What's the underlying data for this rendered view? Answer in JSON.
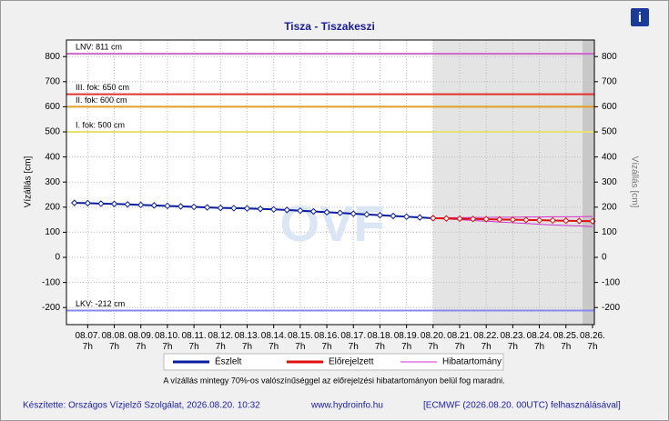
{
  "chart_data": {
    "type": "line",
    "title": "Tisza - Tiszakeszi",
    "ylabel": "Vízállás [cm]",
    "watermark": "OVF",
    "xlim": [
      -0.8,
      19.07
    ],
    "ylim": [
      -268,
      866
    ],
    "grid": true,
    "legend": "bottom",
    "yticks": [
      -200,
      -100,
      0,
      100,
      200,
      300,
      400,
      500,
      600,
      700,
      800
    ],
    "xticks": [
      {
        "value": 0,
        "label": "08.07.\n7h"
      },
      {
        "value": 1,
        "label": "08.08.\n7h"
      },
      {
        "value": 2,
        "label": "08.09.\n7h"
      },
      {
        "value": 3,
        "label": "08.10.\n7h"
      },
      {
        "value": 4,
        "label": "08.11.\n7h"
      },
      {
        "value": 5,
        "label": "08.12.\n7h"
      },
      {
        "value": 6,
        "label": "08.13.\n7h"
      },
      {
        "value": 7,
        "label": "08.14.\n7h"
      },
      {
        "value": 8,
        "label": "08.15.\n7h"
      },
      {
        "value": 9,
        "label": "08.16.\n7h"
      },
      {
        "value": 10,
        "label": "08.17.\n7h"
      },
      {
        "value": 11,
        "label": "08.18.\n7h"
      },
      {
        "value": 12,
        "label": "08.19.\n7h"
      },
      {
        "value": 13,
        "label": "08.20.\n7h"
      },
      {
        "value": 14,
        "label": "08.21.\n7h"
      },
      {
        "value": 15,
        "label": "08.22.\n7h"
      },
      {
        "value": 16,
        "label": "08.23.\n7h"
      },
      {
        "value": 17,
        "label": "08.24.\n7h"
      },
      {
        "value": 18,
        "label": "08.25.\n7h"
      },
      {
        "value": 19,
        "label": "08.26.\n7h"
      }
    ],
    "thresholds": [
      {
        "label": "LNV: 811 cm",
        "value": 811,
        "color": "#cc66cc"
      },
      {
        "label": "III. fok: 650 cm",
        "value": 650,
        "color": "#e03030"
      },
      {
        "label": "II. fok: 600 cm",
        "value": 600,
        "color": "#e0a020"
      },
      {
        "label": "I. fok: 500 cm",
        "value": 500,
        "color": "#e8e070"
      },
      {
        "label": "LKV: -212 cm",
        "value": -212,
        "color": "#8888ee"
      }
    ],
    "series": [
      {
        "name": "Észlelt",
        "color": "#0a1ea0",
        "x": [
          -0.5,
          0,
          0.5,
          1,
          1.5,
          2,
          2.5,
          3,
          3.5,
          4,
          4.5,
          5,
          5.5,
          6,
          6.5,
          7,
          7.5,
          8,
          8.5,
          9,
          9.5,
          10,
          10.5,
          11,
          11.5,
          12,
          12.5,
          13
        ],
        "values": [
          217,
          216,
          214,
          213,
          211,
          209,
          207,
          205,
          203,
          201,
          199,
          197,
          196,
          195,
          193,
          191,
          189,
          186,
          183,
          180,
          177,
          174,
          171,
          168,
          165,
          162,
          159,
          156
        ]
      },
      {
        "name": "Előrejelzett",
        "color": "#e01010",
        "x": [
          13,
          13.5,
          14,
          14.5,
          15,
          15.5,
          16,
          16.5,
          17,
          17.5,
          18,
          18.5,
          19
        ],
        "values": [
          156,
          155,
          154,
          153,
          152,
          151,
          150,
          149,
          148,
          147,
          146,
          145,
          144
        ]
      }
    ],
    "band": {
      "name": "Hibatartomány",
      "color": "#cc33cc",
      "x": [
        13,
        13.5,
        14,
        14.5,
        15,
        15.5,
        16,
        16.5,
        17,
        17.5,
        18,
        18.5,
        19
      ],
      "upper": [
        157,
        158,
        158,
        159,
        159,
        160,
        160,
        161,
        161,
        162,
        162,
        162,
        163
      ],
      "lower": [
        156,
        153,
        150,
        147,
        144,
        141,
        138,
        135,
        132,
        129,
        127,
        125,
        123
      ]
    },
    "note": "A vízállás mintegy 70%-os valószínűséggel az előrejelzési hibatartományon belül fog maradni."
  },
  "footer": {
    "author": "Készítette: Országos Vízjelző Szolgálat, 2026.08.20. 10:32",
    "site": "www.hydroinfo.hu",
    "model": "[ECMWF (2026.08.20. 00UTC) felhasználásával]"
  }
}
